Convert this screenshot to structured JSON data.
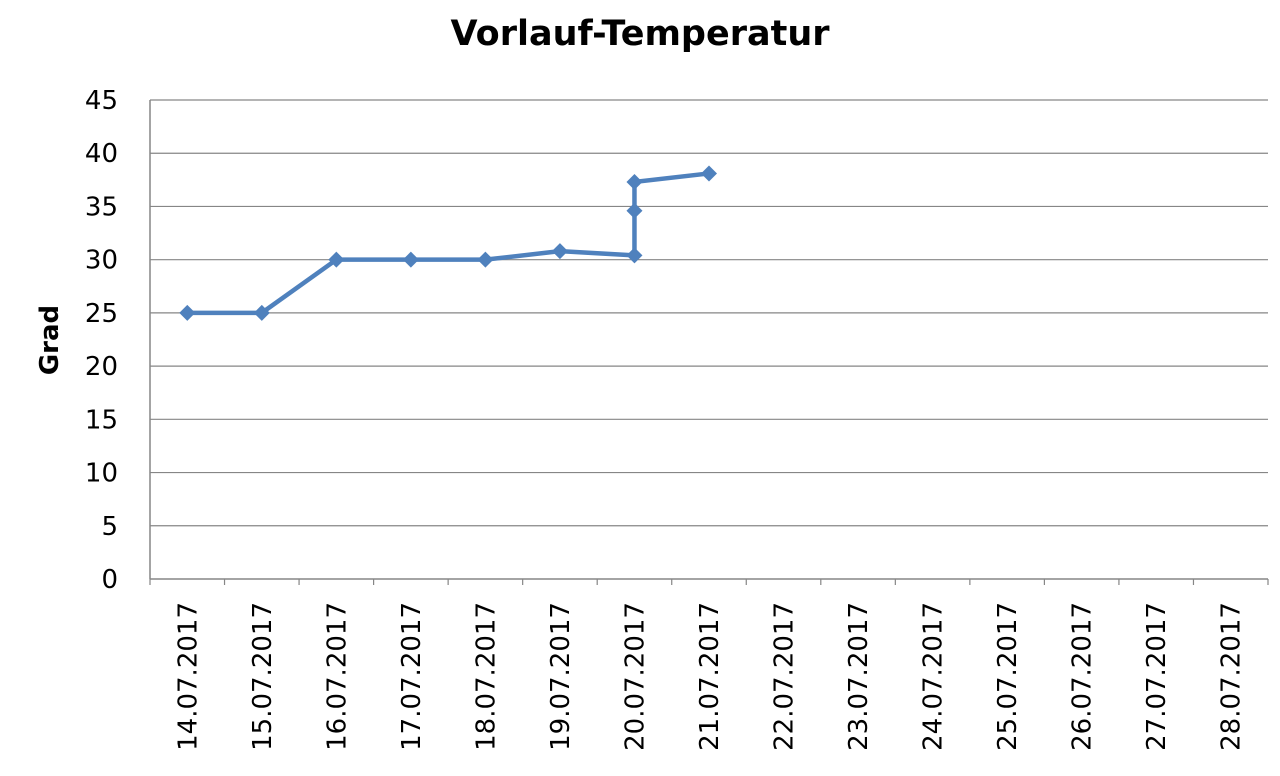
{
  "chart_data": {
    "type": "line",
    "title": "Vorlauf-Temperatur",
    "xlabel": "",
    "ylabel": "Grad",
    "categories": [
      "14.07.2017",
      "15.07.2017",
      "16.07.2017",
      "17.07.2017",
      "18.07.2017",
      "19.07.2017",
      "20.07.2017",
      "21.07.2017",
      "22.07.2017",
      "23.07.2017",
      "24.07.2017",
      "25.07.2017",
      "26.07.2017",
      "27.07.2017",
      "28.07.2017"
    ],
    "ylim": [
      0,
      45
    ],
    "yticks": [
      0,
      5,
      10,
      15,
      20,
      25,
      30,
      35,
      40,
      45
    ],
    "grid": true,
    "series": [
      {
        "x": [
          "14.07.2017",
          "15.07.2017",
          "16.07.2017",
          "17.07.2017",
          "18.07.2017",
          "19.07.2017",
          "20.07.2017",
          "20.07.2017",
          "20.07.2017",
          "21.07.2017"
        ],
        "values": [
          25,
          25,
          30,
          30,
          30,
          30.8,
          30.4,
          34.6,
          37.3,
          38.1
        ],
        "color": "#4f81bd",
        "marker": "diamond"
      }
    ]
  },
  "colors": {
    "line": "#4f81bd",
    "grid": "#868686",
    "text": "#000000"
  }
}
